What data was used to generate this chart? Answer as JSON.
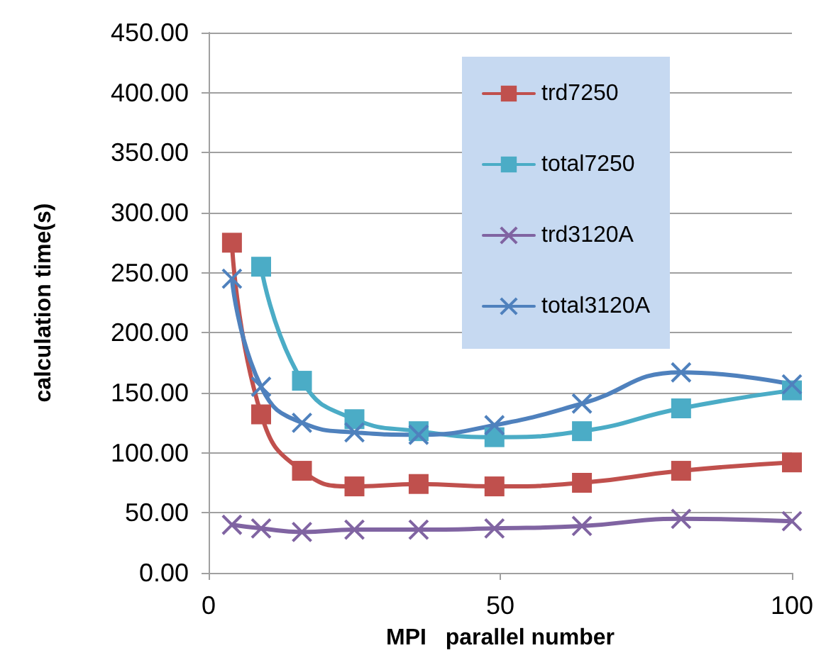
{
  "chart_data": {
    "type": "line",
    "xlabel": "MPI   parallel number",
    "ylabel": "calculation time(s)",
    "x": [
      4,
      9,
      16,
      25,
      36,
      49,
      64,
      81,
      100
    ],
    "series": [
      {
        "name": "trd7250",
        "color": "#c0504d",
        "marker": "square",
        "values": [
          275,
          132,
          85,
          72,
          74,
          72,
          75,
          85,
          92
        ]
      },
      {
        "name": "total7250",
        "color": "#4bacc6",
        "marker": "square",
        "values": [
          null,
          255,
          160,
          128,
          118,
          113,
          118,
          137,
          152
        ]
      },
      {
        "name": "trd3120A",
        "color": "#8064a2",
        "marker": "cross",
        "values": [
          40,
          37,
          34,
          36,
          36,
          37,
          39,
          45,
          43
        ]
      },
      {
        "name": "total3120A",
        "color": "#4f81bd",
        "marker": "cross",
        "values": [
          245,
          155,
          125,
          117,
          115,
          123,
          141,
          167,
          157
        ]
      }
    ],
    "xlim": [
      0,
      100
    ],
    "xticks": [
      0,
      50,
      100
    ],
    "ylim": [
      0,
      450
    ],
    "yticks": [
      {
        "value": 0,
        "label": "0.00"
      },
      {
        "value": 50,
        "label": "50.00"
      },
      {
        "value": 100,
        "label": "100.00"
      },
      {
        "value": 150,
        "label": "150.00"
      },
      {
        "value": 200,
        "label": "200.00"
      },
      {
        "value": 250,
        "label": "250.00"
      },
      {
        "value": 300,
        "label": "300.00"
      },
      {
        "value": 350,
        "label": "350.00"
      },
      {
        "value": 400,
        "label": "400.00"
      },
      {
        "value": 450,
        "label": "450.00"
      }
    ],
    "grid": "y",
    "legend": "top right"
  }
}
